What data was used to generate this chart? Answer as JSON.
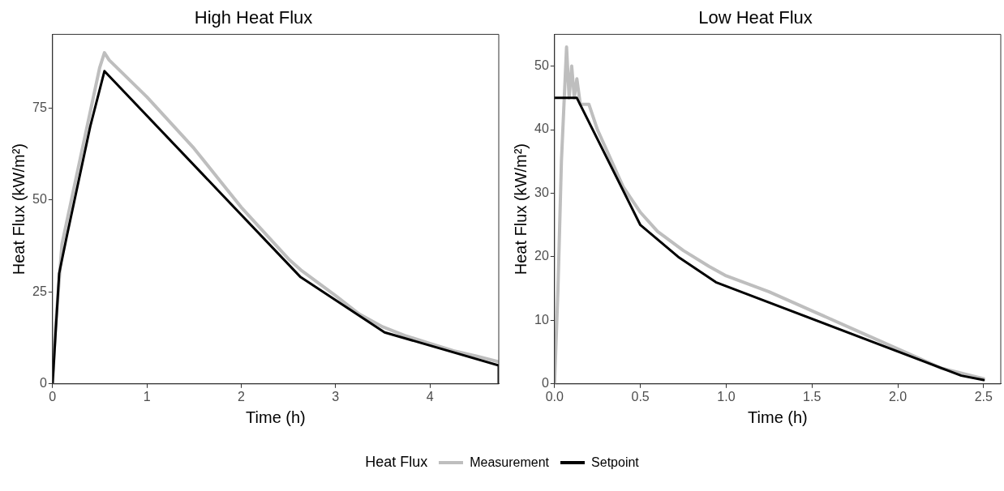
{
  "chart_data": [
    {
      "type": "line",
      "title": "High Heat Flux",
      "xlabel": "Time (h)",
      "ylabel": "Heat Flux (kW/m²)",
      "xlim": [
        0,
        4.73
      ],
      "xticks": [
        0,
        1,
        2,
        3,
        4
      ],
      "ylim": [
        0,
        95
      ],
      "yticks": [
        0,
        25,
        50,
        75
      ],
      "legend": "bottom",
      "legend_title": "Heat Flux",
      "marker": "none",
      "line_style": "solid",
      "series": [
        {
          "name": "Measurement",
          "color": "#bebebe",
          "x": [
            0,
            0.03,
            0.1,
            0.2,
            0.3,
            0.4,
            0.5,
            0.55,
            0.6,
            0.8,
            1,
            1.25,
            1.5,
            1.75,
            2,
            2.25,
            2.5,
            2.63,
            3,
            3.25,
            3.5,
            3.75,
            4,
            4.25,
            4.5,
            4.73
          ],
          "values": [
            0,
            15,
            38,
            50,
            62,
            74,
            86,
            90,
            88,
            83,
            78,
            71,
            64,
            56,
            48,
            41,
            34,
            31,
            24,
            19,
            15.5,
            13,
            11,
            9,
            7.5,
            6
          ]
        },
        {
          "name": "Setpoint",
          "color": "#000000",
          "x": [
            0,
            0.07,
            0.15,
            0.4,
            0.55,
            2.63,
            3.52,
            4.73,
            4.73
          ],
          "values": [
            0,
            30,
            40,
            70,
            85,
            29,
            14,
            5,
            0
          ]
        }
      ]
    },
    {
      "type": "line",
      "title": "Low Heat Flux",
      "xlabel": "Time (h)",
      "ylabel": "Heat Flux (kW/m²)",
      "xlim": [
        0,
        2.6
      ],
      "xticks": [
        {
          "value": 0,
          "label": "0.0"
        },
        0.5,
        {
          "value": 1,
          "label": "1.0"
        },
        1.5,
        {
          "value": 2,
          "label": "2.0"
        },
        2.5
      ],
      "ylim": [
        0,
        55
      ],
      "yticks": [
        0,
        10,
        20,
        30,
        40,
        50
      ],
      "marker": "none",
      "line_style": "solid",
      "series": [
        {
          "color": "#bebebe",
          "x": [
            0,
            0.02,
            0.04,
            0.07,
            0.085,
            0.1,
            0.115,
            0.13,
            0.15,
            0.2,
            0.25,
            0.3,
            0.35,
            0.4,
            0.45,
            0.5,
            0.6,
            0.75,
            0.9,
            1,
            1.25,
            1.5,
            1.75,
            2,
            2.25,
            2.5
          ],
          "values": [
            0,
            15,
            35,
            53,
            45,
            50,
            45,
            48,
            44,
            44,
            40,
            37,
            34,
            31,
            29,
            27,
            24,
            21,
            18.5,
            17,
            14.5,
            11.5,
            8.5,
            5.5,
            2.5,
            0.8
          ]
        },
        {
          "color": "#000000",
          "x": [
            0,
            0.13,
            0.5,
            0.72,
            0.94,
            2.37,
            2.5
          ],
          "values": [
            45,
            45,
            25,
            20,
            16,
            1.3,
            0.6
          ]
        }
      ]
    }
  ]
}
